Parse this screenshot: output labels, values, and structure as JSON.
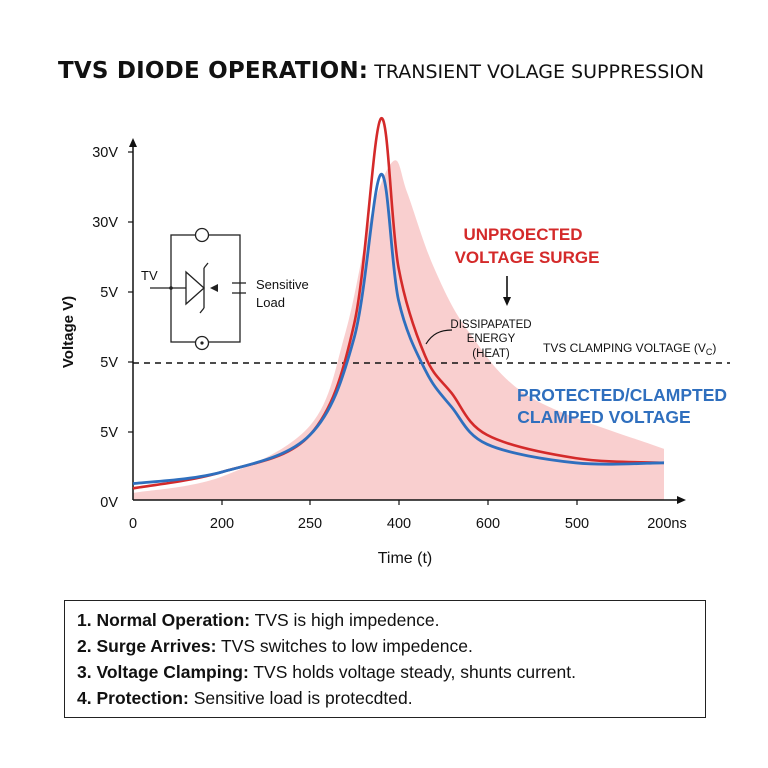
{
  "title": {
    "bold": "TVS DIODE OPERATION:",
    "light": " TRANSIENT VOLAGE SUPPRESSION"
  },
  "chart_data": {
    "type": "line",
    "title": "TVS DIODE OPERATION: TRANSIENT VOLAGE SUPPRESSION",
    "xlabel": "Time (t)",
    "ylabel": "Voltage V)",
    "x_ticks": [
      "0",
      "200",
      "250",
      "400",
      "600",
      "500",
      "200ns"
    ],
    "y_ticks": [
      "0V",
      "5V",
      "5V",
      "5V",
      "30V",
      "30V"
    ],
    "series": [
      {
        "name": "UNPROECTED VOLTAGE SURGE",
        "color": "#d42a2a",
        "x": [
          0,
          1,
          2,
          2.5,
          2.8,
          3.0,
          3.3,
          3.6,
          4.0,
          5.0,
          6.0
        ],
        "y": [
          0.25,
          0.6,
          1.4,
          3.8,
          8.2,
          5.0,
          3.1,
          2.3,
          1.4,
          0.9,
          0.8
        ]
      },
      {
        "name": "PROTECTED/CLAMPTED CLAMPED VOLTAGE",
        "color": "#2f6fbe",
        "x": [
          0,
          1,
          2,
          2.5,
          2.8,
          3.0,
          3.3,
          3.6,
          4.0,
          5.0,
          6.0
        ],
        "y": [
          0.35,
          0.6,
          1.4,
          3.5,
          7.0,
          4.3,
          2.8,
          2.0,
          1.2,
          0.8,
          0.8
        ]
      }
    ],
    "clamp_level": 2.0,
    "shaded_area": "Dissipated energy (heat)",
    "colors": {
      "unprotected": "#d42a2a",
      "protected": "#2f6fbe",
      "fill": "#f8c9c9"
    },
    "grid": false
  },
  "annotations": {
    "unprotected_line1": "UNPROECTED",
    "unprotected_line2": "VOLTAGE SURGE",
    "protected_line1": "PROTECTED/CLAMPTED",
    "protected_line2": "CLAMPED VOLTAGE",
    "dissipated_line1": "DISSIPAPATED",
    "dissipated_line2": "ENERGY",
    "dissipated_line3": "(HEAT)",
    "clamp_label": "TVS CLAMPING VOLTAGE (V",
    "clamp_sub": "C",
    "clamp_close": ")"
  },
  "circuit": {
    "tv_label": "TV",
    "load_line1": "Sensitive",
    "load_line2": "Load"
  },
  "steps": [
    {
      "bold": "1. Normal Operation:",
      "text": " TVS is high impedence."
    },
    {
      "bold": "2. Surge Arrives:",
      "text": " TVS switches to low impedence."
    },
    {
      "bold": "3. Voltage Clamping:",
      "text": " TVS holds voltage steady, shunts current."
    },
    {
      "bold": "4. Protection:",
      "text": " Sensitive load is protecdted."
    }
  ]
}
